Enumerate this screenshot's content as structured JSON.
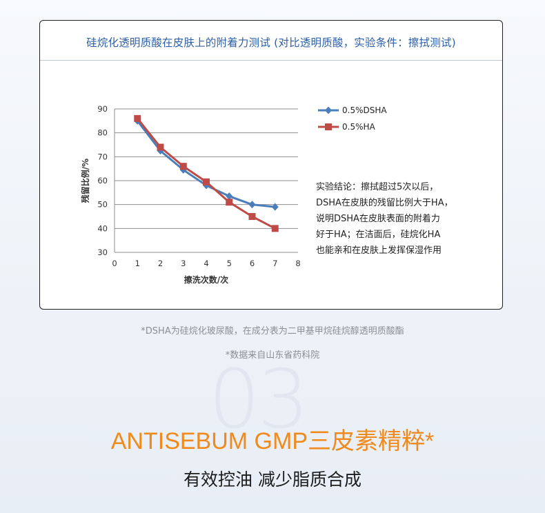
{
  "card": {
    "title": "硅烷化透明质酸在皮肤上的附着力测试 (对比透明质酸，实验条件：擦拭测试)",
    "conclusion_lines": [
      "实验结论：擦拭超过5次以后，",
      "DSHA在皮肤的残留比例大于HA，",
      "说明DSHA在皮肤表面的附着力",
      "好于HA；在洁面后，硅烷化HA",
      "也能亲和在皮肤上发挥保湿作用"
    ]
  },
  "chart_data": {
    "type": "line",
    "xlabel": "擦洗次数/次",
    "ylabel": "残留比例/%",
    "xlim": [
      0,
      8
    ],
    "ylim": [
      30,
      90
    ],
    "x_ticks": [
      "0",
      "1",
      "2",
      "3",
      "4",
      "5",
      "6",
      "7",
      "8"
    ],
    "y_ticks": [
      "90",
      "80",
      "70",
      "60",
      "50",
      "40",
      "30"
    ],
    "grid": "horizontal",
    "legend_position": "top-right",
    "series": [
      {
        "name": "0.5%DSHA",
        "color": "#4a7ebb",
        "marker": "diamond",
        "x": [
          1,
          2,
          3,
          4,
          5,
          6,
          7
        ],
        "values": [
          85,
          72.5,
          64.5,
          58,
          53.5,
          50,
          49
        ]
      },
      {
        "name": "0.5%HA",
        "color": "#be4b48",
        "marker": "square",
        "x": [
          1,
          2,
          3,
          4,
          5,
          6,
          7
        ],
        "values": [
          86,
          74,
          66,
          59.5,
          51,
          45,
          40
        ]
      }
    ]
  },
  "footnotes": {
    "note1": "*DSHA为硅烷化玻尿酸，在成分表为二甲基甲烷硅烷醇透明质酸酯",
    "note2": "*数据来自山东省药科院"
  },
  "section": {
    "number": "03",
    "headline": "ANTISEBUM GMP三皮素精粹*",
    "subline": "有效控油 减少脂质合成"
  }
}
